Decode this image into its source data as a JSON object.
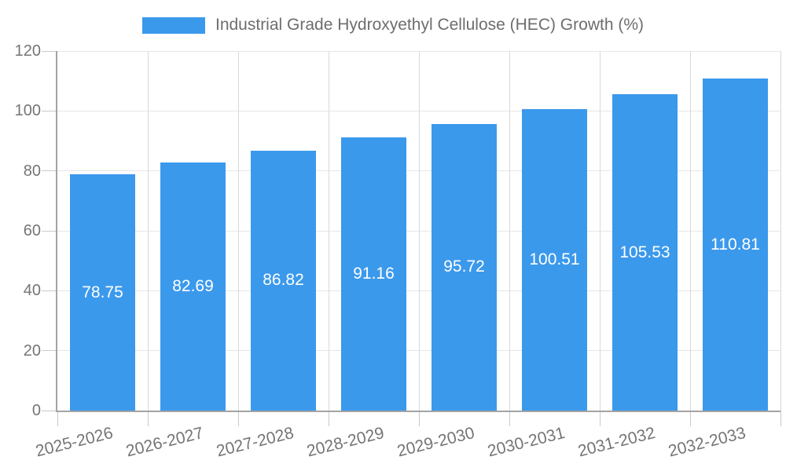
{
  "chart_data": {
    "type": "bar",
    "title": "Industrial Grade Hydroxyethyl Cellulose (HEC) Growth (%)",
    "categories": [
      "2025-2026",
      "2026-2027",
      "2027-2028",
      "2028-2029",
      "2029-2030",
      "2030-2031",
      "2031-2032",
      "2032-2033"
    ],
    "values": [
      78.75,
      82.69,
      86.82,
      91.16,
      95.72,
      100.51,
      105.53,
      110.81
    ],
    "value_labels": [
      "78.75",
      "82.69",
      "86.82",
      "91.16",
      "95.72",
      "100.51",
      "105.53",
      "110.81"
    ],
    "xlabel": "",
    "ylabel": "",
    "ylim": [
      0,
      120
    ],
    "y_ticks": [
      0,
      20,
      40,
      60,
      80,
      100,
      120
    ],
    "y_tick_labels": [
      "0",
      "20",
      "40",
      "60",
      "80",
      "100",
      "120"
    ],
    "grid": true,
    "legend_position": "top"
  },
  "colors": {
    "bar": "#3B99EC",
    "bar_label": "#FFFFFF",
    "title_text": "#6D6D6D",
    "axis_label_text": "#757575",
    "axis_line": "#A3A3A3",
    "tick": "#C9C9C9",
    "grid_horizontal": "#E6E6E6",
    "grid_vertical": "#D9D9D9",
    "background": "#FFFFFF"
  }
}
